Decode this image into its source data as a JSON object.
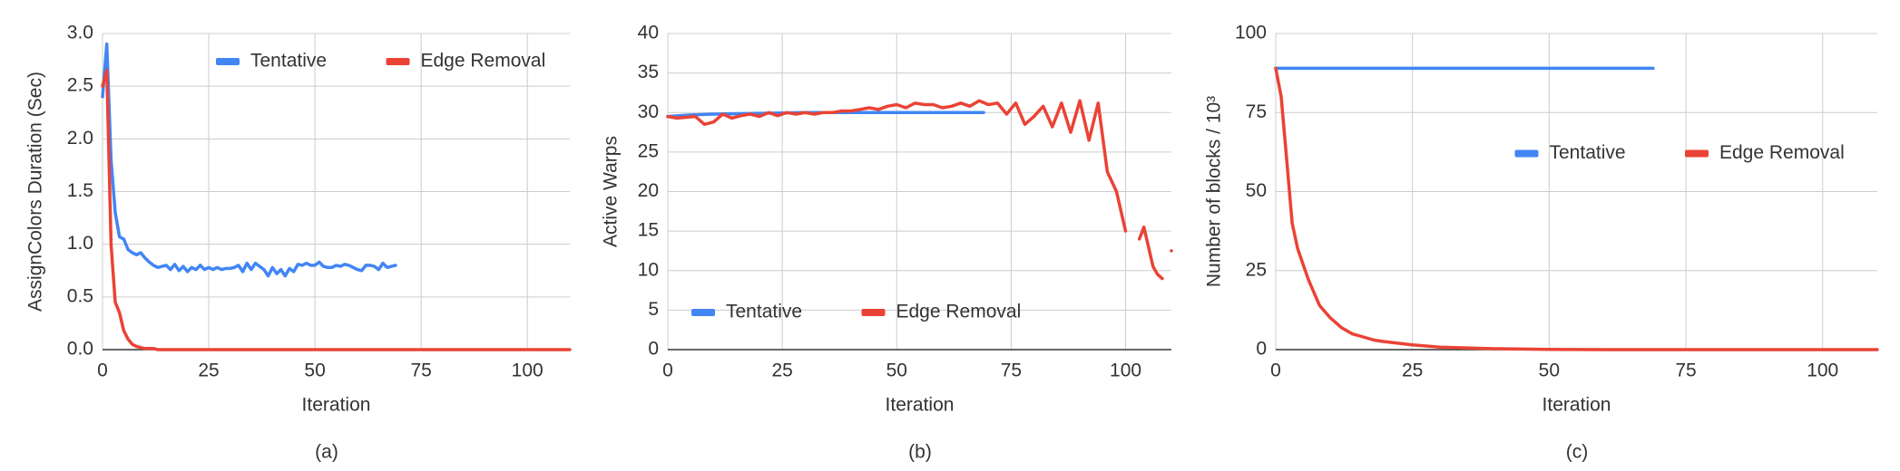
{
  "chart_data": [
    {
      "type": "line",
      "caption": "(a)",
      "x_label": "Iteration",
      "y_label": "AssignColors Duration (Sec)",
      "xlim": [
        0,
        110
      ],
      "xticks": [
        0,
        25,
        50,
        75,
        100
      ],
      "ylim": [
        0,
        3
      ],
      "yticks": [
        {
          "value": 0,
          "label": "0.0"
        },
        0.5,
        {
          "value": 1,
          "label": "1.0"
        },
        1.5,
        {
          "value": 2,
          "label": "2.0"
        },
        2.5,
        {
          "value": 3,
          "label": "3.0"
        }
      ],
      "grid": true,
      "legend": "top-right",
      "series": [
        {
          "name": "Tentative",
          "color": "#4285f4",
          "x": [
            0,
            1,
            2,
            3,
            4,
            5,
            6,
            7,
            8,
            9,
            10,
            11,
            12,
            13,
            14,
            15,
            16,
            17,
            18,
            19,
            20,
            21,
            22,
            23,
            24,
            25,
            26,
            27,
            28,
            29,
            30,
            31,
            32,
            33,
            34,
            35,
            36,
            37,
            38,
            39,
            40,
            41,
            42,
            43,
            44,
            45,
            46,
            47,
            48,
            49,
            50,
            51,
            52,
            53,
            54,
            55,
            56,
            57,
            58,
            59,
            60,
            61,
            62,
            63,
            64,
            65,
            66,
            67,
            68,
            69
          ],
          "values": [
            2.4,
            2.9,
            1.8,
            1.3,
            1.07,
            1.05,
            0.95,
            0.92,
            0.9,
            0.92,
            0.87,
            0.83,
            0.8,
            0.78,
            0.79,
            0.8,
            0.76,
            0.81,
            0.75,
            0.79,
            0.74,
            0.78,
            0.76,
            0.8,
            0.76,
            0.78,
            0.76,
            0.78,
            0.76,
            0.77,
            0.77,
            0.78,
            0.8,
            0.74,
            0.82,
            0.76,
            0.82,
            0.79,
            0.76,
            0.7,
            0.78,
            0.72,
            0.76,
            0.7,
            0.77,
            0.74,
            0.81,
            0.8,
            0.82,
            0.8,
            0.8,
            0.83,
            0.79,
            0.78,
            0.78,
            0.8,
            0.79,
            0.81,
            0.8,
            0.78,
            0.76,
            0.75,
            0.8,
            0.8,
            0.79,
            0.76,
            0.82,
            0.78,
            0.79,
            0.8
          ]
        },
        {
          "name": "Edge Removal",
          "color": "#ea4335",
          "x": [
            0,
            1,
            2,
            3,
            4,
            5,
            6,
            7,
            8,
            9,
            10,
            11,
            12,
            13,
            14,
            15,
            20,
            30,
            40,
            50,
            60,
            70,
            80,
            90,
            100,
            110
          ],
          "values": [
            2.5,
            2.65,
            1.0,
            0.45,
            0.35,
            0.18,
            0.1,
            0.05,
            0.03,
            0.02,
            0.01,
            0.01,
            0.01,
            0,
            0,
            0,
            0,
            0,
            0,
            0,
            0,
            0,
            0,
            0,
            0,
            0
          ]
        }
      ]
    },
    {
      "type": "line",
      "caption": "(b)",
      "x_label": "Iteration",
      "y_label": "Active Warps",
      "xlim": [
        0,
        110
      ],
      "xticks": [
        0,
        25,
        50,
        75,
        100
      ],
      "ylim": [
        0,
        40
      ],
      "yticks": [
        0,
        5,
        10,
        15,
        20,
        25,
        30,
        35,
        40
      ],
      "grid": true,
      "legend": "bottom-left",
      "series": [
        {
          "name": "Tentative",
          "color": "#4285f4",
          "x": [
            0,
            5,
            10,
            20,
            30,
            40,
            50,
            60,
            69
          ],
          "values": [
            29.5,
            29.7,
            29.8,
            29.9,
            30,
            30,
            30,
            30,
            30
          ]
        },
        {
          "name": "Edge Removal",
          "color": "#ea4335",
          "x": [
            0,
            2,
            4,
            6,
            8,
            10,
            12,
            14,
            16,
            18,
            20,
            22,
            24,
            26,
            28,
            30,
            32,
            34,
            36,
            38,
            40,
            42,
            44,
            46,
            48,
            50,
            52,
            54,
            56,
            58,
            60,
            62,
            64,
            66,
            68,
            70,
            72,
            74,
            76,
            78,
            80,
            82,
            84,
            86,
            88,
            90,
            92,
            94,
            96,
            98,
            100,
            101,
            102,
            103,
            104,
            106,
            107,
            108,
            109,
            110
          ],
          "values": [
            29.5,
            29.3,
            29.4,
            29.5,
            28.5,
            28.8,
            29.8,
            29.3,
            29.6,
            29.8,
            29.5,
            30,
            29.6,
            30,
            29.8,
            30,
            29.8,
            30,
            30,
            30.2,
            30.2,
            30.4,
            30.6,
            30.4,
            30.8,
            31,
            30.6,
            31.2,
            31,
            31,
            30.6,
            30.8,
            31.2,
            30.8,
            31.5,
            31,
            31.2,
            29.8,
            31.2,
            28.5,
            29.5,
            30.8,
            28.2,
            31.2,
            27.5,
            31.5,
            26.5,
            31.2,
            22.5,
            20,
            15,
            null,
            null,
            14,
            15.5,
            10.5,
            9.5,
            9,
            null,
            12.5
          ]
        }
      ]
    },
    {
      "type": "line",
      "caption": "(c)",
      "x_label": "Iteration",
      "y_label": "Number of blocks / 10³",
      "xlim": [
        0,
        110
      ],
      "xticks": [
        0,
        25,
        50,
        75,
        100
      ],
      "ylim": [
        0,
        100
      ],
      "yticks": [
        0,
        25,
        50,
        75,
        100
      ],
      "grid": true,
      "legend": "right",
      "series": [
        {
          "name": "Tentative",
          "color": "#4285f4",
          "x": [
            0,
            69
          ],
          "values": [
            89,
            89
          ]
        },
        {
          "name": "Edge Removal",
          "color": "#ea4335",
          "x": [
            0,
            1,
            2,
            3,
            4,
            5,
            6,
            7,
            8,
            9,
            10,
            12,
            14,
            16,
            18,
            20,
            25,
            30,
            40,
            50,
            60,
            110
          ],
          "values": [
            89,
            80,
            60,
            40,
            32,
            27,
            22,
            18,
            14,
            12,
            10,
            7,
            5,
            4,
            3,
            2.5,
            1.5,
            0.8,
            0.3,
            0.1,
            0,
            0
          ]
        }
      ]
    }
  ]
}
